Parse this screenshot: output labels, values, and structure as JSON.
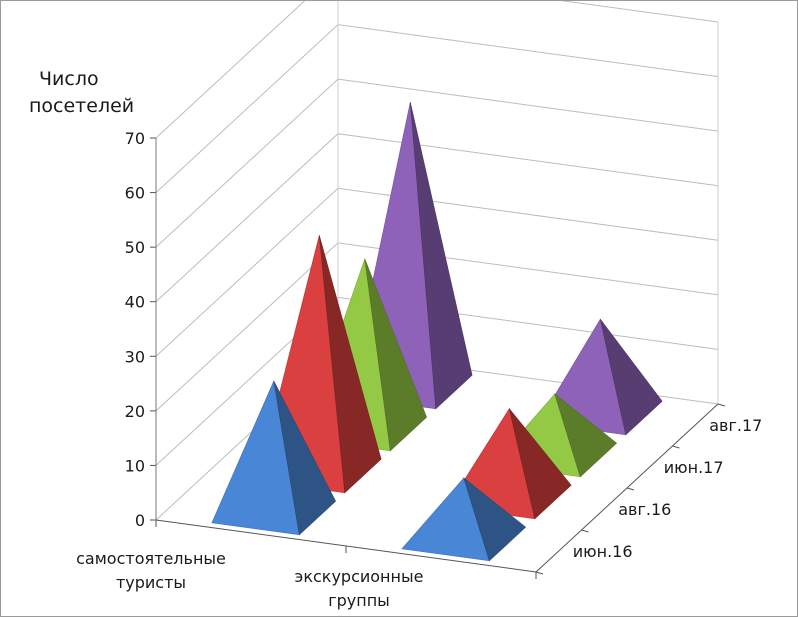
{
  "chart_data": {
    "type": "bar",
    "style": "3d-pyramid",
    "title": "",
    "ylabel": "Число посетелей",
    "ylim": [
      0,
      70
    ],
    "yticks": [
      "0",
      "10",
      "20",
      "30",
      "40",
      "50",
      "60",
      "70"
    ],
    "categories": [
      "самостоятельные туристы",
      "экскурсионные группы"
    ],
    "series": [
      {
        "name": "июн.16",
        "color": "#4a86d6",
        "values": [
          24,
          11
        ]
      },
      {
        "name": "авг.16",
        "color": "#d9403f",
        "values": [
          43,
          16
        ]
      },
      {
        "name": "июн.17",
        "color": "#93c944",
        "values": [
          31,
          11
        ]
      },
      {
        "name": "авг.17",
        "color": "#8e62b8",
        "values": [
          52,
          17
        ]
      }
    ],
    "grid": true
  }
}
